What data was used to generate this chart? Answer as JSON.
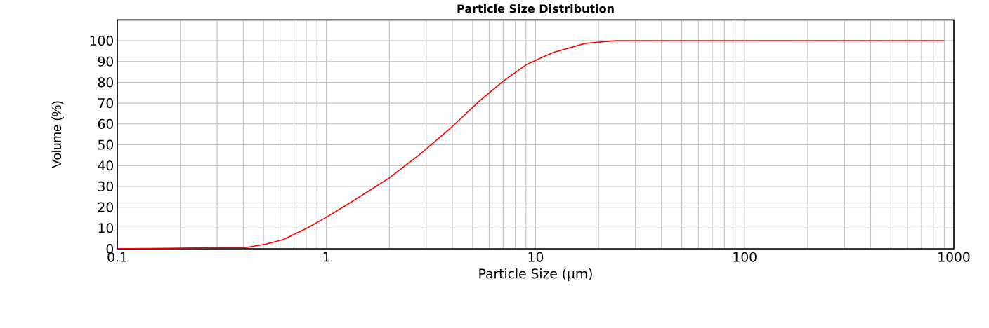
{
  "chart_data": {
    "type": "line",
    "title": "Particle Size Distribution",
    "xlabel": "Particle Size (µm)",
    "ylabel": "Volume (%)",
    "log": "x",
    "grid": true,
    "xlim": [
      0.1,
      1000
    ],
    "xticks": [
      0.1,
      1,
      10,
      100,
      1000
    ],
    "ylim": [
      0,
      110
    ],
    "yticks": [
      0,
      10,
      20,
      30,
      40,
      50,
      60,
      70,
      80,
      90,
      100
    ],
    "x": [
      0.1,
      0.32,
      0.41,
      0.51,
      0.62,
      0.81,
      1.0,
      1.34,
      1.98,
      2.84,
      3.97,
      5.41,
      7.03,
      9.08,
      12.1,
      17.3,
      24.3,
      900
    ],
    "series": [
      {
        "color": "#ff0000",
        "values": [
          0,
          0.6,
          0.6,
          2.2,
          4.4,
          10,
          15.2,
          23,
          33.8,
          45.9,
          58.5,
          71.2,
          80.7,
          88.6,
          94.3,
          98.7,
          100,
          100
        ]
      }
    ]
  }
}
